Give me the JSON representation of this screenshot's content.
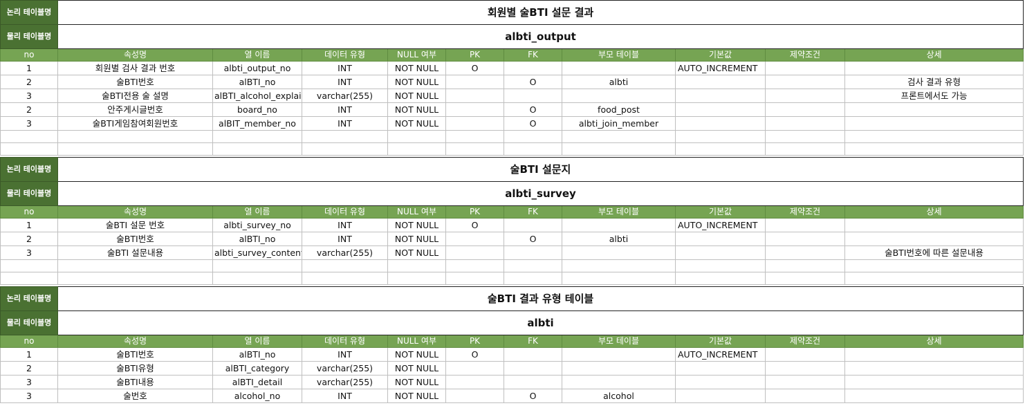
{
  "labels": {
    "logical": "논리 테이블명",
    "physical": "물리 테이블명"
  },
  "columns": [
    "no",
    "속성명",
    "열 이름",
    "데이터 유형",
    "NULL 여부",
    "PK",
    "FK",
    "부모 테이블",
    "기본값",
    "제약조건",
    "상세"
  ],
  "tables": [
    {
      "logical_name": "회원별 술BTI 설문 결과",
      "physical_name": "albti_output",
      "rows": [
        [
          "1",
          "회원별 검사 결과 번호",
          "albti_output_no",
          "INT",
          "NOT NULL",
          "O",
          "",
          "",
          "AUTO_INCREMENT",
          "",
          ""
        ],
        [
          "2",
          "술BTI번호",
          "alBTI_no",
          "INT",
          "NOT NULL",
          "",
          "O",
          "albti",
          "",
          "",
          "검사 결과 유형"
        ],
        [
          "3",
          "술BTI전용 술 설명",
          "alBTI_alcohol_explain",
          "varchar(255)",
          "NOT NULL",
          "",
          "",
          "",
          "",
          "",
          "프론트에서도 가능"
        ],
        [
          "2",
          "안주게시글번호",
          "board_no",
          "INT",
          "NOT NULL",
          "",
          "O",
          "food_post",
          "",
          "",
          ""
        ],
        [
          "3",
          "술BTI게임참여회원번호",
          "alBIT_member_no",
          "INT",
          "NOT NULL",
          "",
          "O",
          "albti_join_member",
          "",
          "",
          ""
        ]
      ]
    },
    {
      "logical_name": "술BTI 설문지",
      "physical_name": "albti_survey",
      "rows": [
        [
          "1",
          "술BTI 설문 번호",
          "albti_survey_no",
          "INT",
          "NOT NULL",
          "O",
          "",
          "",
          "AUTO_INCREMENT",
          "",
          ""
        ],
        [
          "2",
          "술BTI번호",
          "alBTI_no",
          "INT",
          "NOT NULL",
          "",
          "O",
          "albti",
          "",
          "",
          ""
        ],
        [
          "3",
          "술BTI 설문내용",
          "albti_survey_content",
          "varchar(255)",
          "NOT NULL",
          "",
          "",
          "",
          "",
          "",
          "술BTI번호에 따른 설문내용"
        ]
      ]
    },
    {
      "logical_name": "술BTI 결과 유형 테이블",
      "physical_name": "albti",
      "rows": [
        [
          "1",
          "술BTI번호",
          "alBTI_no",
          "INT",
          "NOT NULL",
          "O",
          "",
          "",
          "AUTO_INCREMENT",
          "",
          ""
        ],
        [
          "2",
          "술BTI유형",
          "alBTI_category",
          "varchar(255)",
          "NOT NULL",
          "",
          "",
          "",
          "",
          "",
          ""
        ],
        [
          "3",
          "술BTI내용",
          "alBTI_detail",
          "varchar(255)",
          "NOT NULL",
          "",
          "",
          "",
          "",
          "",
          ""
        ],
        [
          "3",
          "술번호",
          "alcohol_no",
          "INT",
          "NOT NULL",
          "",
          "O",
          "alcohol",
          "",
          "",
          ""
        ]
      ]
    }
  ]
}
